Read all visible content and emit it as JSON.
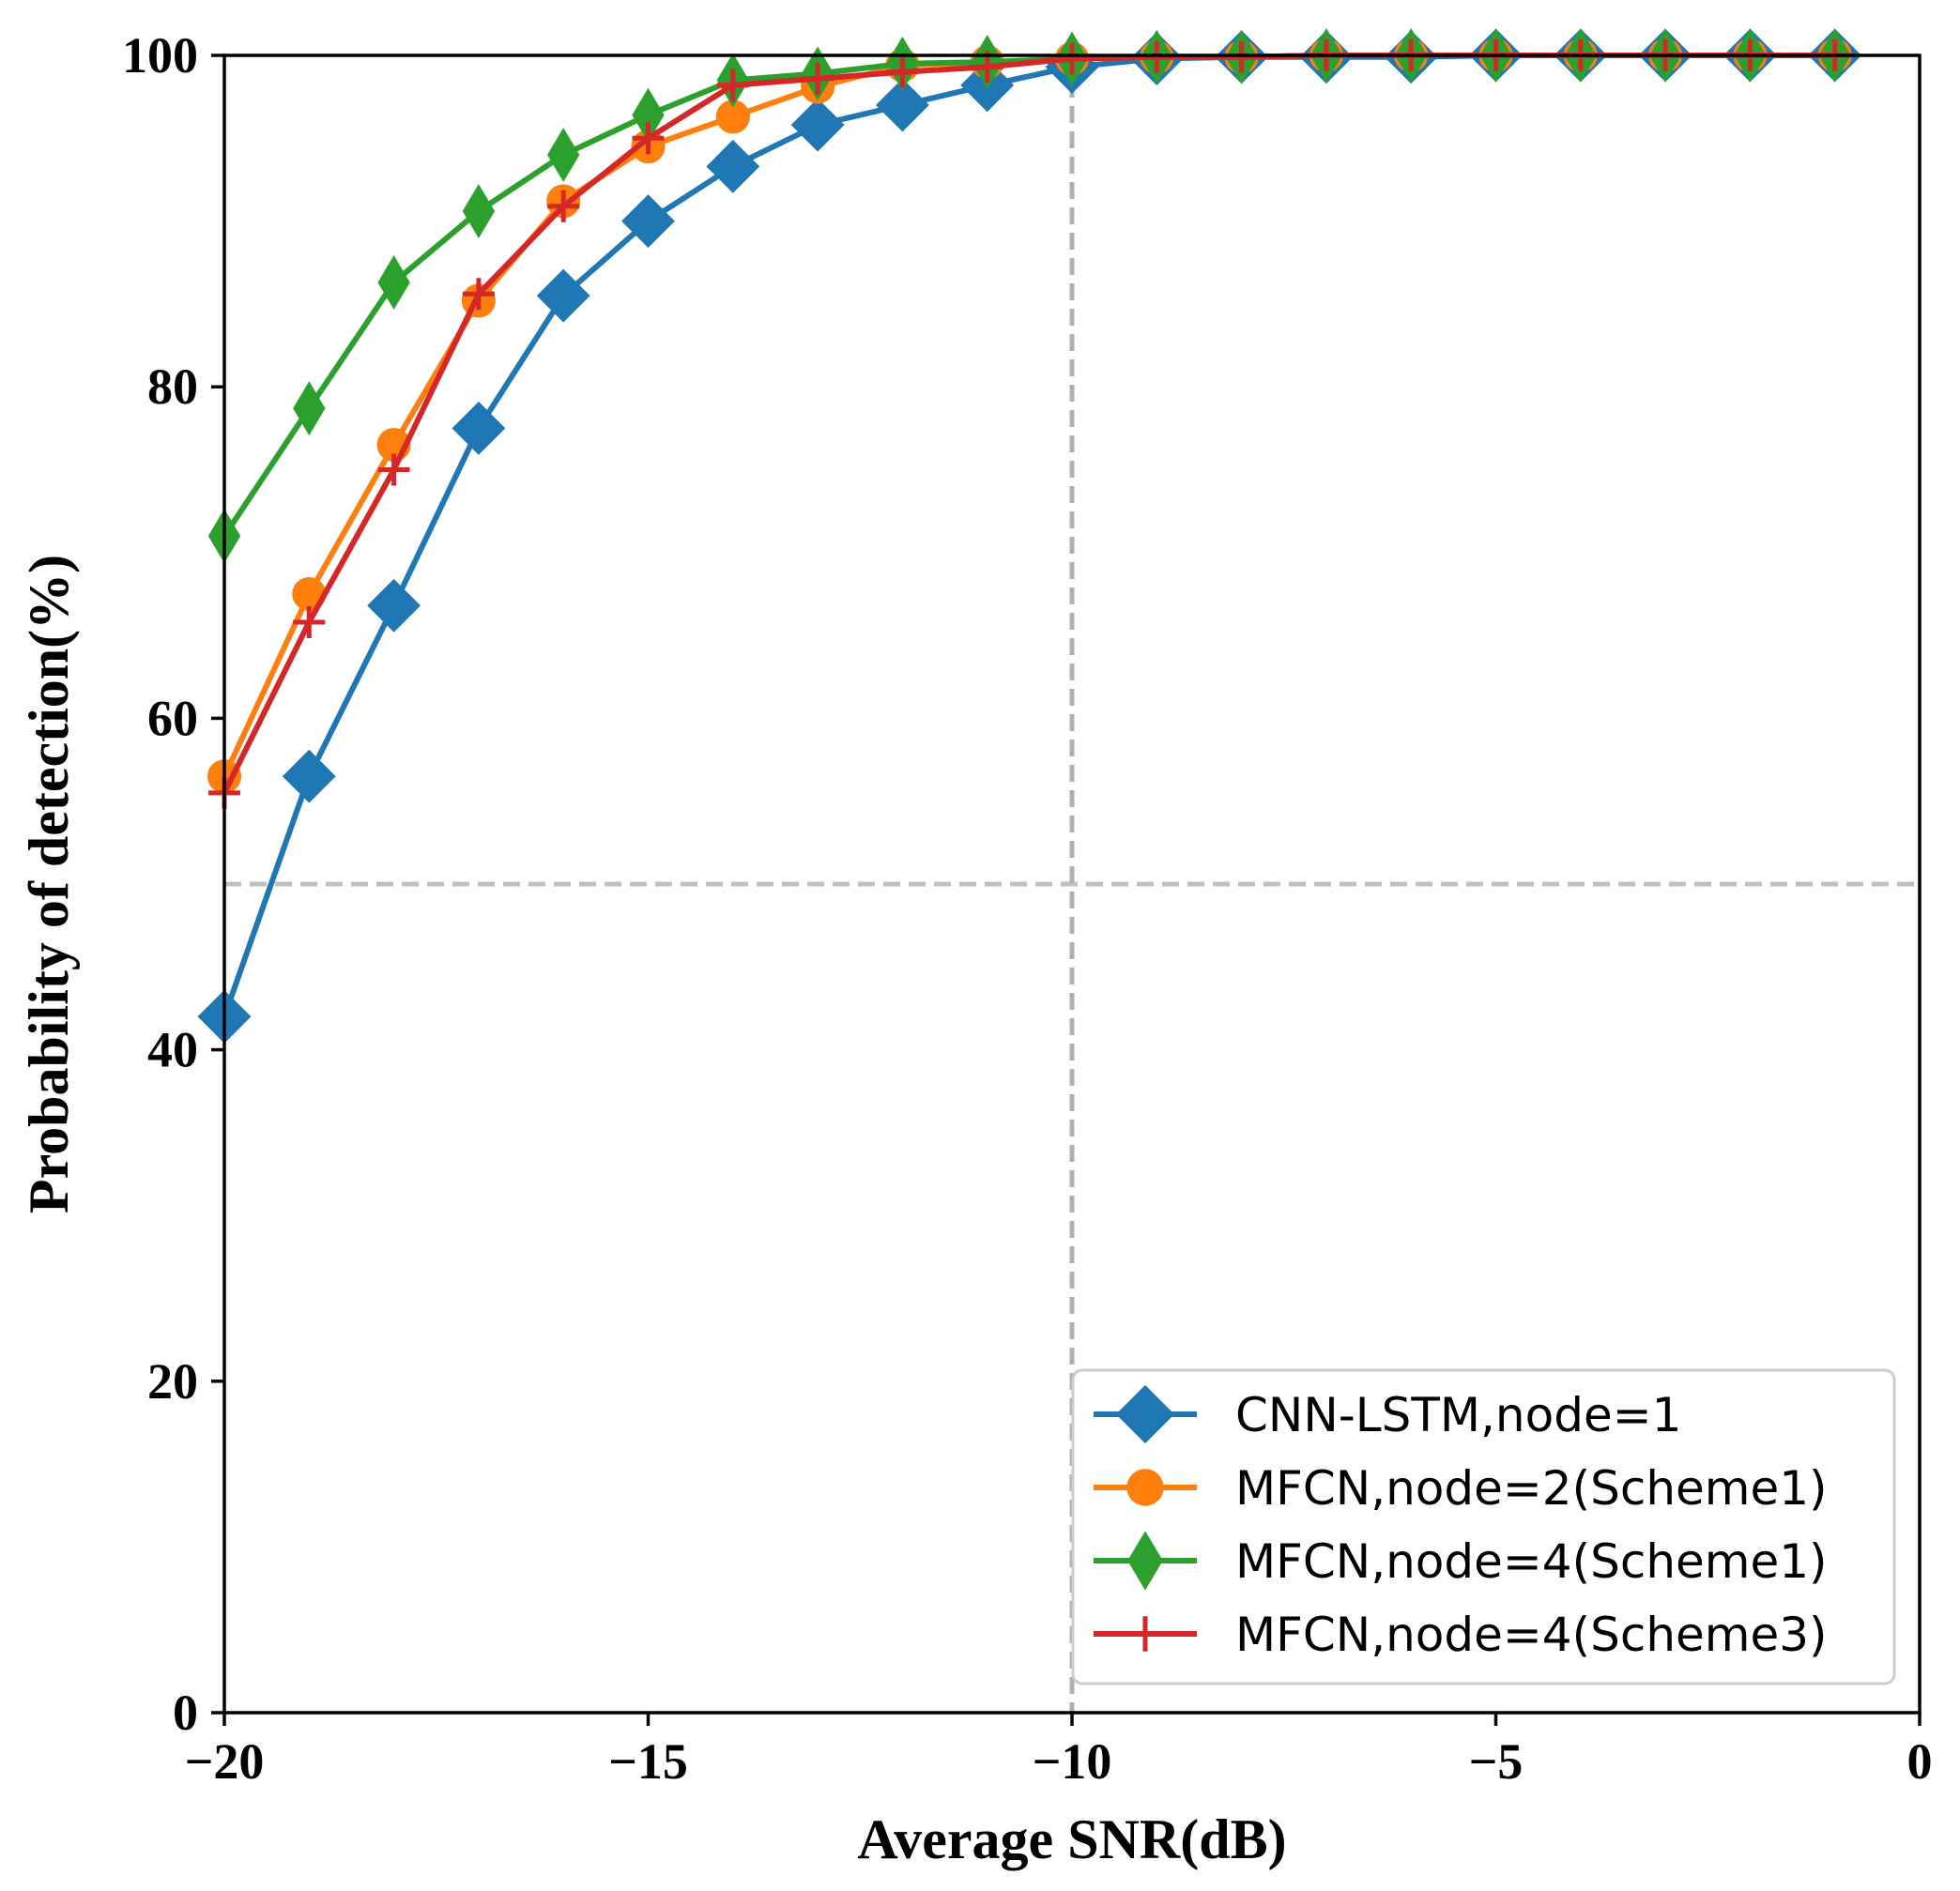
{
  "chart_data": {
    "type": "line",
    "title": "",
    "xlabel": "Average SNR(dB)",
    "ylabel": "Probability of detection(%)",
    "xlim": [
      -20,
      0
    ],
    "ylim": [
      0,
      100
    ],
    "xticks": [
      -20,
      -15,
      -10,
      -5,
      0
    ],
    "xtick_labels": [
      "−20",
      "−15",
      "−10",
      "−5",
      "0"
    ],
    "yticks": [
      0,
      20,
      40,
      60,
      80,
      100
    ],
    "ytick_labels": [
      "0",
      "20",
      "40",
      "60",
      "80",
      "100"
    ],
    "reference_lines": [
      {
        "orientation": "horizontal",
        "value": 50,
        "style": "dashed",
        "color": "#c0c0c0"
      },
      {
        "orientation": "vertical",
        "value": -10,
        "style": "dashed",
        "color": "#b0b0b0"
      }
    ],
    "legend_position": "lower-right",
    "x": [
      -20,
      -19,
      -18,
      -17,
      -16,
      -15,
      -14,
      -13,
      -12,
      -11,
      -10,
      -9,
      -8,
      -7,
      -6,
      -5,
      -4,
      -3,
      -2,
      -1
    ],
    "series": [
      {
        "name": "CNN-LSTM,node=1",
        "color": "#1f77b4",
        "marker": "diamond",
        "values": [
          42,
          56.5,
          66.8,
          77.5,
          85.5,
          90,
          93.3,
          95.8,
          97,
          98.2,
          99.3,
          99.8,
          99.9,
          99.9,
          99.9,
          100,
          100,
          100,
          100,
          100
        ]
      },
      {
        "name": "MFCN,node=2(Scheme1)",
        "color": "#ff7f0e",
        "marker": "circle",
        "values": [
          56.5,
          67.5,
          76.5,
          85.2,
          91.2,
          94.5,
          96.3,
          98.1,
          99.4,
          99.6,
          99.8,
          99.9,
          99.9,
          100,
          100,
          100,
          100,
          100,
          100,
          100
        ]
      },
      {
        "name": "MFCN,node=4(Scheme1)",
        "color": "#2ca02c",
        "marker": "thin_diamond",
        "values": [
          71,
          78.7,
          86.3,
          90.6,
          94,
          96.4,
          98.5,
          98.9,
          99.5,
          99.6,
          99.8,
          99.9,
          99.9,
          100,
          100,
          100,
          100,
          100,
          100,
          100
        ]
      },
      {
        "name": "MFCN,node=4(Scheme3)",
        "color": "#d62728",
        "marker": "plus",
        "values": [
          55.5,
          65.8,
          75,
          85.6,
          90.9,
          95,
          98.2,
          98.6,
          99,
          99.3,
          99.8,
          99.9,
          99.9,
          100,
          100,
          100,
          100,
          100,
          100,
          100
        ]
      }
    ]
  }
}
